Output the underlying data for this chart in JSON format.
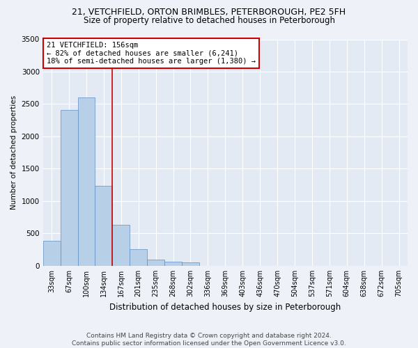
{
  "title1": "21, VETCHFIELD, ORTON BRIMBLES, PETERBOROUGH, PE2 5FH",
  "title2": "Size of property relative to detached houses in Peterborough",
  "xlabel": "Distribution of detached houses by size in Peterborough",
  "ylabel": "Number of detached properties",
  "footer1": "Contains HM Land Registry data © Crown copyright and database right 2024.",
  "footer2": "Contains public sector information licensed under the Open Government Licence v3.0.",
  "annotation_line1": "21 VETCHFIELD: 156sqm",
  "annotation_line2": "← 82% of detached houses are smaller (6,241)",
  "annotation_line3": "18% of semi-detached houses are larger (1,380) →",
  "bar_color": "#b8cfe8",
  "bar_edge_color": "#5b8ec4",
  "vline_color": "#cc0000",
  "annotation_box_edgecolor": "#cc0000",
  "categories": [
    "33sqm",
    "67sqm",
    "100sqm",
    "134sqm",
    "167sqm",
    "201sqm",
    "235sqm",
    "268sqm",
    "302sqm",
    "336sqm",
    "369sqm",
    "403sqm",
    "436sqm",
    "470sqm",
    "504sqm",
    "537sqm",
    "571sqm",
    "604sqm",
    "638sqm",
    "672sqm",
    "705sqm"
  ],
  "values": [
    390,
    2410,
    2600,
    1240,
    630,
    255,
    100,
    60,
    50,
    0,
    0,
    0,
    0,
    0,
    0,
    0,
    0,
    0,
    0,
    0,
    0
  ],
  "vline_x_index": 3.5,
  "ylim": [
    0,
    3500
  ],
  "yticks": [
    0,
    500,
    1000,
    1500,
    2000,
    2500,
    3000,
    3500
  ],
  "background_color": "#eef2f8",
  "plot_bg_color": "#e4eaf4",
  "title1_fontsize": 9,
  "title2_fontsize": 8.5,
  "xlabel_fontsize": 8.5,
  "ylabel_fontsize": 7.5,
  "tick_fontsize": 7,
  "ytick_fontsize": 7.5,
  "annotation_fontsize": 7.5,
  "footer_fontsize": 6.5
}
